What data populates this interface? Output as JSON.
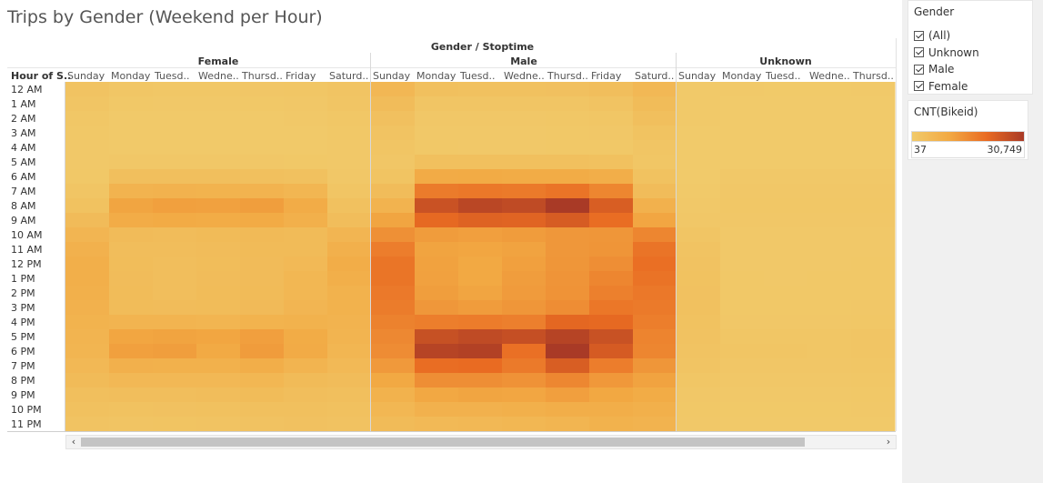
{
  "title": "Trips by Gender (Weekend per Hour)",
  "chart_data": {
    "type": "heatmap",
    "title": "Trips by Gender (Weekend per Hour)",
    "column_header": "Gender / Stoptime",
    "row_header": "Hour of S..",
    "groups": [
      {
        "name": "Female",
        "days": [
          "Sunday",
          "Monday",
          "Tuesd..",
          "Wedne..",
          "Thursd..",
          "Friday",
          "Saturd.."
        ]
      },
      {
        "name": "Male",
        "days": [
          "Sunday",
          "Monday",
          "Tuesd..",
          "Wedne..",
          "Thursd..",
          "Friday",
          "Saturd.."
        ]
      },
      {
        "name": "Unknown",
        "days": [
          "Sunday",
          "Monday",
          "Tuesd..",
          "Wedne..",
          "Thursd.."
        ]
      }
    ],
    "hours": [
      "12 AM",
      "1 AM",
      "2 AM",
      "3 AM",
      "4 AM",
      "5 AM",
      "6 AM",
      "7 AM",
      "8 AM",
      "9 AM",
      "10 AM",
      "11 AM",
      "12 PM",
      "1 PM",
      "2 PM",
      "3 PM",
      "4 PM",
      "5 PM",
      "6 PM",
      "7 PM",
      "8 PM",
      "9 PM",
      "10 PM",
      "11 PM"
    ],
    "color_min": 37,
    "color_max": 30749,
    "values": {
      "Female": [
        [
          2100,
          1300,
          1100,
          1100,
          1200,
          1400,
          1900
        ],
        [
          1500,
          700,
          600,
          600,
          700,
          900,
          1500
        ],
        [
          1100,
          400,
          350,
          350,
          400,
          600,
          1100
        ],
        [
          800,
          250,
          200,
          200,
          250,
          400,
          800
        ],
        [
          500,
          250,
          200,
          200,
          220,
          300,
          500
        ],
        [
          500,
          900,
          850,
          850,
          850,
          800,
          500
        ],
        [
          800,
          3300,
          3400,
          3300,
          3200,
          2900,
          900
        ],
        [
          1500,
          7000,
          7400,
          7200,
          7000,
          6300,
          1500
        ],
        [
          2600,
          11000,
          12000,
          11700,
          12300,
          9200,
          2800
        ],
        [
          4500,
          9200,
          9600,
          9400,
          9700,
          8000,
          4000
        ],
        [
          6400,
          4500,
          4300,
          4600,
          4900,
          4600,
          6400
        ],
        [
          7700,
          3900,
          3900,
          4200,
          4700,
          4600,
          7900
        ],
        [
          8400,
          4100,
          3700,
          4100,
          4500,
          5200,
          8900
        ],
        [
          8400,
          4200,
          3600,
          4300,
          4500,
          5900,
          8400
        ],
        [
          8000,
          4400,
          3700,
          4400,
          4600,
          6000,
          7500
        ],
        [
          7700,
          4400,
          4200,
          4400,
          4800,
          6400,
          7500
        ],
        [
          7200,
          6700,
          6800,
          6600,
          7200,
          7500,
          7100
        ],
        [
          6800,
          10800,
          11200,
          10800,
          12100,
          9300,
          6700
        ],
        [
          6500,
          11900,
          12300,
          10000,
          12700,
          9500,
          6200
        ],
        [
          5600,
          7900,
          7800,
          7800,
          8700,
          6900,
          5200
        ],
        [
          4600,
          5500,
          5500,
          5600,
          6000,
          4600,
          4200
        ],
        [
          3500,
          3600,
          3600,
          4000,
          4400,
          3800,
          3300
        ],
        [
          2800,
          2600,
          2700,
          2900,
          3200,
          3200,
          2900
        ],
        [
          2100,
          1900,
          2000,
          2200,
          2500,
          2700,
          2500
        ]
      ],
      "Male": [
        [
          5800,
          3100,
          2800,
          2800,
          3000,
          3600,
          5600
        ],
        [
          4300,
          1600,
          1500,
          1600,
          1700,
          2100,
          4400
        ],
        [
          3000,
          900,
          900,
          900,
          1000,
          1400,
          3300
        ],
        [
          2200,
          600,
          600,
          600,
          700,
          900,
          2300
        ],
        [
          1500,
          700,
          600,
          600,
          700,
          800,
          1500
        ],
        [
          1200,
          3200,
          3200,
          3100,
          3200,
          2800,
          1400
        ],
        [
          2000,
          9500,
          9600,
          9400,
          9400,
          8500,
          2600
        ],
        [
          4300,
          19000,
          19600,
          19300,
          20400,
          17000,
          4300
        ],
        [
          7000,
          26500,
          28500,
          27800,
          30749,
          24400,
          7600
        ],
        [
          11000,
          22500,
          23600,
          23400,
          24700,
          21800,
          10700
        ],
        [
          15000,
          12600,
          12100,
          12700,
          13600,
          13800,
          17000
        ],
        [
          18700,
          11200,
          10800,
          11300,
          13600,
          14000,
          20500
        ],
        [
          20200,
          11500,
          10200,
          11900,
          13800,
          15400,
          21300
        ],
        [
          20300,
          11800,
          10200,
          12400,
          14300,
          17000,
          20600
        ],
        [
          19400,
          12300,
          10900,
          12800,
          14500,
          18000,
          19600
        ],
        [
          18900,
          13600,
          12700,
          13900,
          15600,
          19800,
          19300
        ],
        [
          17800,
          18500,
          18800,
          18200,
          22800,
          22500,
          18500
        ],
        [
          16500,
          26800,
          27800,
          27000,
          29000,
          26600,
          17400
        ],
        [
          15700,
          29000,
          29600,
          21100,
          30700,
          24900,
          16900
        ],
        [
          13200,
          21700,
          22100,
          19300,
          24400,
          18700,
          13900
        ],
        [
          10100,
          15400,
          15400,
          14600,
          16800,
          13400,
          11400
        ],
        [
          7500,
          10300,
          10900,
          10700,
          12100,
          10400,
          9300
        ],
        [
          6000,
          7600,
          7700,
          8000,
          8700,
          8600,
          8100
        ],
        [
          4600,
          5300,
          5500,
          5900,
          6600,
          7500,
          7000
        ]
      ],
      "Unknown": [
        [
          300,
          200,
          180,
          180,
          200
        ],
        [
          250,
          150,
          140,
          140,
          150
        ],
        [
          200,
          100,
          100,
          100,
          110
        ],
        [
          150,
          80,
          80,
          80,
          80
        ],
        [
          100,
          80,
          70,
          70,
          80
        ],
        [
          80,
          150,
          140,
          140,
          150
        ],
        [
          120,
          500,
          500,
          500,
          500
        ],
        [
          250,
          900,
          900,
          900,
          900
        ],
        [
          500,
          1100,
          1100,
          1100,
          1100
        ],
        [
          900,
          900,
          900,
          900,
          900
        ],
        [
          1500,
          600,
          600,
          600,
          650
        ],
        [
          2100,
          600,
          600,
          600,
          650
        ],
        [
          2400,
          650,
          600,
          650,
          700
        ],
        [
          2600,
          700,
          650,
          700,
          750
        ],
        [
          2700,
          750,
          700,
          750,
          800
        ],
        [
          2800,
          800,
          750,
          800,
          900
        ],
        [
          2600,
          900,
          900,
          900,
          1000
        ],
        [
          2400,
          1400,
          1400,
          1400,
          1500
        ],
        [
          2200,
          1500,
          1500,
          1400,
          1500
        ],
        [
          1800,
          1200,
          1200,
          1200,
          1300
        ],
        [
          1300,
          900,
          900,
          900,
          950
        ],
        [
          900,
          600,
          600,
          600,
          700
        ],
        [
          700,
          450,
          450,
          450,
          550
        ],
        [
          500,
          300,
          300,
          300,
          400
        ]
      ]
    }
  },
  "scrollbar": {
    "left_arrow": "‹",
    "right_arrow": "›"
  },
  "filter": {
    "title": "Gender",
    "items": [
      "(All)",
      "Unknown",
      "Male",
      "Female"
    ]
  },
  "legend": {
    "title": "CNT(Bikeid)",
    "min_label": "37",
    "max_label": "30,749",
    "colors": [
      "#f1ca6a",
      "#f2a943",
      "#e96b22",
      "#a93a26"
    ]
  }
}
